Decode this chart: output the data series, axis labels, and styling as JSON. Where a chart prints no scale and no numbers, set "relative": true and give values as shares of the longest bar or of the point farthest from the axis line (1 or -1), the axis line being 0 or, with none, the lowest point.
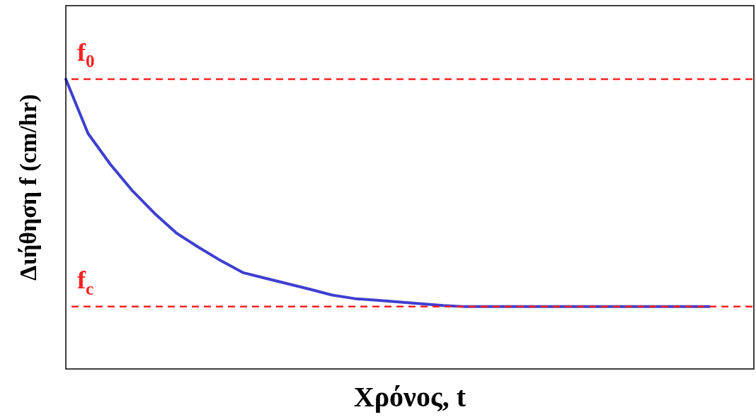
{
  "chart_data": {
    "type": "line",
    "relative": true,
    "xlabel": "Χρόνος, t",
    "ylabel": "Διήθηση f (cm/hr)",
    "categories": [
      null,
      null,
      null,
      null,
      null,
      null,
      null,
      null,
      null,
      null,
      null,
      null,
      null,
      null,
      null,
      null,
      null,
      null,
      null,
      null,
      null,
      null,
      null,
      null,
      null,
      null,
      null,
      null,
      null,
      null,
      null,
      null
    ],
    "series": [
      {
        "color": "#3f3fd0",
        "values": [
          1.0,
          0.813,
          0.707,
          0.615,
          0.537,
          0.468,
          0.419,
          0.373,
          0.332,
          0.313,
          0.294,
          0.275,
          0.255,
          0.243,
          0.237,
          0.231,
          0.225,
          0.219,
          0.215,
          0.215,
          0.215,
          0.215,
          0.215,
          0.215,
          0.215,
          0.215,
          0.215,
          0.215,
          0.215,
          0.215,
          null,
          null
        ]
      }
    ],
    "ref_lines": [
      {
        "axis": "y",
        "value": 1.0,
        "label": "f$_{0}$",
        "color": "#ff2020",
        "line_style": "dashed"
      },
      {
        "axis": "y",
        "value": 0.215,
        "label": "f$_{c}$",
        "color": "#ff2020",
        "line_style": "dashed"
      }
    ],
    "legend": false,
    "marker": "none",
    "line_style": "solid"
  }
}
